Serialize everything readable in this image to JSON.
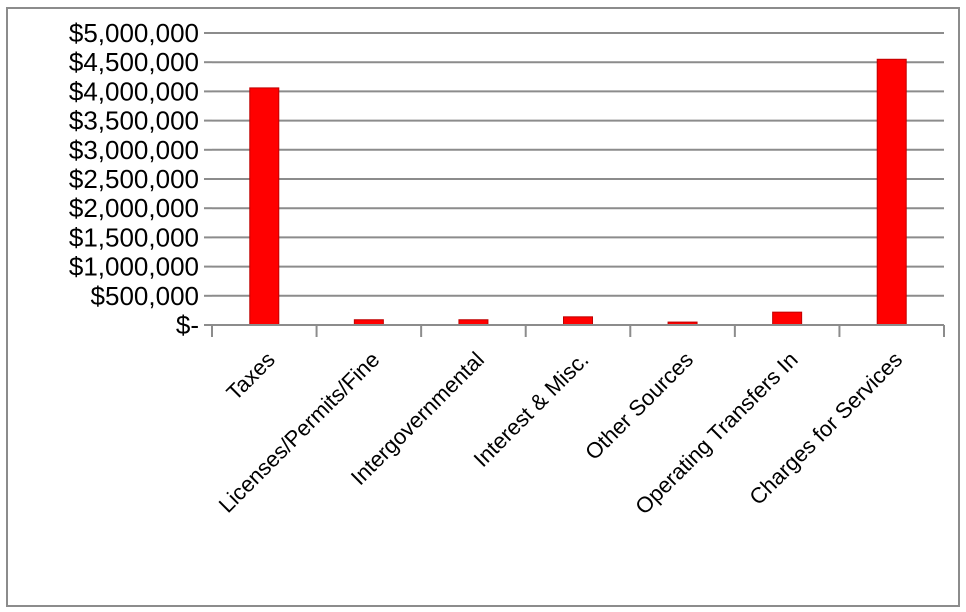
{
  "chart_data": {
    "type": "bar",
    "title": "",
    "xlabel": "",
    "ylabel": "",
    "categories": [
      "Taxes",
      "Licenses/Permits/Fine",
      "Intergovernmental",
      "Interest & Misc.",
      "Other Sources",
      "Operating Transfers In",
      "Charges for Services"
    ],
    "values": [
      4060000,
      90000,
      90000,
      140000,
      50000,
      220000,
      4550000
    ],
    "ylim": [
      0,
      5000000
    ],
    "y_ticks": [
      0,
      500000,
      1000000,
      1500000,
      2000000,
      2500000,
      3000000,
      3500000,
      4000000,
      4500000,
      5000000
    ],
    "y_tick_labels": [
      "$-",
      "$500,000",
      "$1,000,000",
      "$1,500,000",
      "$2,000,000",
      "$2,500,000",
      "$3,000,000",
      "$3,500,000",
      "$4,000,000",
      "$4,500,000",
      "$5,000,000"
    ],
    "grid": true,
    "legend": "none",
    "bar_color": "#ff0000",
    "bar_stroke_color": "#c00000",
    "grid_color": "#8c8c8c"
  }
}
